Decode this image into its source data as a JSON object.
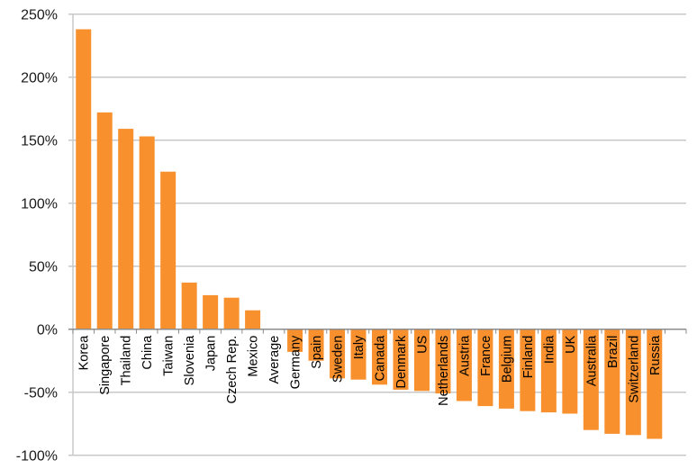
{
  "chart_data": {
    "type": "bar",
    "title": "",
    "xlabel": "",
    "ylabel": "",
    "ylim": [
      -100,
      250
    ],
    "yticks": [
      250,
      200,
      150,
      100,
      50,
      0,
      -50,
      -100
    ],
    "ytick_labels": [
      "250%",
      "200%",
      "150%",
      "100%",
      "50%",
      "0%",
      "-50%",
      "-100%"
    ],
    "grid": true,
    "legend": "none",
    "bar_color": "#F7902D",
    "categories": [
      "Korea",
      "Singapore",
      "Thailand",
      "China",
      "Taiwan",
      "Slovenia",
      "Japan",
      "Czech Rep.",
      "Mexico",
      "Average",
      "Germany",
      "Spain",
      "Sweden",
      "Italy",
      "Canada",
      "Denmark",
      "US",
      "Netherlands",
      "Austria",
      "France",
      "Belgium",
      "Finland",
      "India",
      "UK",
      "Australia",
      "Brazil",
      "Switzerland",
      "Russia"
    ],
    "values": [
      238,
      172,
      159,
      153,
      125,
      37,
      27,
      25,
      15,
      0,
      -18,
      -25,
      -39,
      -40,
      -44,
      -48,
      -49,
      -51,
      -57,
      -61,
      -63,
      -65,
      -66,
      -67,
      -80,
      -83,
      -84,
      -87
    ]
  }
}
